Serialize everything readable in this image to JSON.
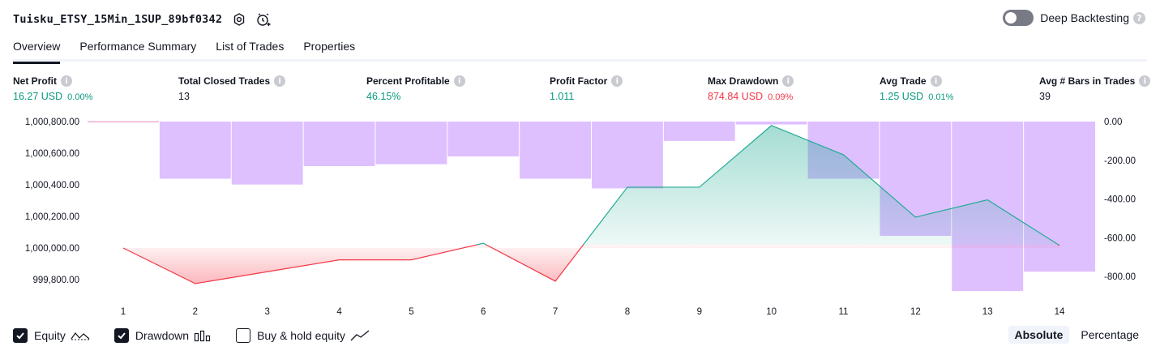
{
  "header": {
    "strategy_name": "Tuisku_ETSY_15Min_1SUP_89bf0342",
    "icons": [
      "settings-icon",
      "add-alert-icon"
    ]
  },
  "deep_backtesting": {
    "label": "Deep Backtesting",
    "enabled": false,
    "help": "?"
  },
  "tabs": [
    {
      "label": "Overview",
      "active": true
    },
    {
      "label": "Performance Summary",
      "active": false
    },
    {
      "label": "List of Trades",
      "active": false
    },
    {
      "label": "Properties",
      "active": false
    }
  ],
  "metrics": [
    {
      "label": "Net Profit",
      "value": "16.27 USD",
      "pct": "0.00%",
      "color": "green"
    },
    {
      "label": "Total Closed Trades",
      "value": "13",
      "pct": "",
      "color": "dark"
    },
    {
      "label": "Percent Profitable",
      "value": "46.15%",
      "pct": "",
      "color": "green"
    },
    {
      "label": "Profit Factor",
      "value": "1.011",
      "pct": "",
      "color": "green"
    },
    {
      "label": "Max Drawdown",
      "value": "874.84 USD",
      "pct": "0.09%",
      "color": "red"
    },
    {
      "label": "Avg Trade",
      "value": "1.25 USD",
      "pct": "0.01%",
      "color": "green"
    },
    {
      "label": "Avg # Bars in Trades",
      "value": "39",
      "pct": "",
      "color": "dark"
    }
  ],
  "chart_data": {
    "type": "line",
    "x": [
      1,
      2,
      3,
      4,
      5,
      6,
      7,
      8,
      9,
      10,
      11,
      12,
      13,
      14
    ],
    "series": [
      {
        "name": "Equity",
        "type": "area",
        "axis": "left",
        "values": [
          1000000.0,
          999775.0,
          999850.0,
          999925.0,
          999925.0,
          1000030.0,
          999790.0,
          1000385.0,
          1000385.0,
          1000775.0,
          1000590.0,
          1000195.0,
          1000305.0,
          1000016.27
        ]
      },
      {
        "name": "Drawdown",
        "type": "bar",
        "axis": "right",
        "values": [
          0.0,
          -295.0,
          -325.0,
          -230.0,
          -220.0,
          -180.0,
          -295.0,
          -345.0,
          -100.0,
          -15.0,
          -295.0,
          -590.0,
          -875.0,
          -775.0
        ]
      }
    ],
    "left_ticks": [
      "1,000,800.00",
      "1,000,600.00",
      "1,000,400.00",
      "1,000,200.00",
      "1,000,000.00",
      "999,800.00"
    ],
    "right_ticks": [
      "0.00",
      "-200.00",
      "-400.00",
      "-600.00",
      "-800.00"
    ],
    "left_range": [
      999700.0,
      1000800.0
    ],
    "right_range": [
      -1000.0,
      0.0
    ],
    "baseline": 1000000.0,
    "colors": {
      "equity_up": "#22ab94",
      "equity_down": "#f23645",
      "drawdown": "#d1a8ff"
    }
  },
  "legend": [
    {
      "label": "Equity",
      "checked": true,
      "icon": "equity-line-icon"
    },
    {
      "label": "Drawdown",
      "checked": true,
      "icon": "drawdown-bars-icon"
    },
    {
      "label": "Buy & hold equity",
      "checked": false,
      "icon": "buy-hold-line-icon"
    }
  ],
  "mode": {
    "absolute_label": "Absolute",
    "percentage_label": "Percentage",
    "selected": "Absolute"
  }
}
